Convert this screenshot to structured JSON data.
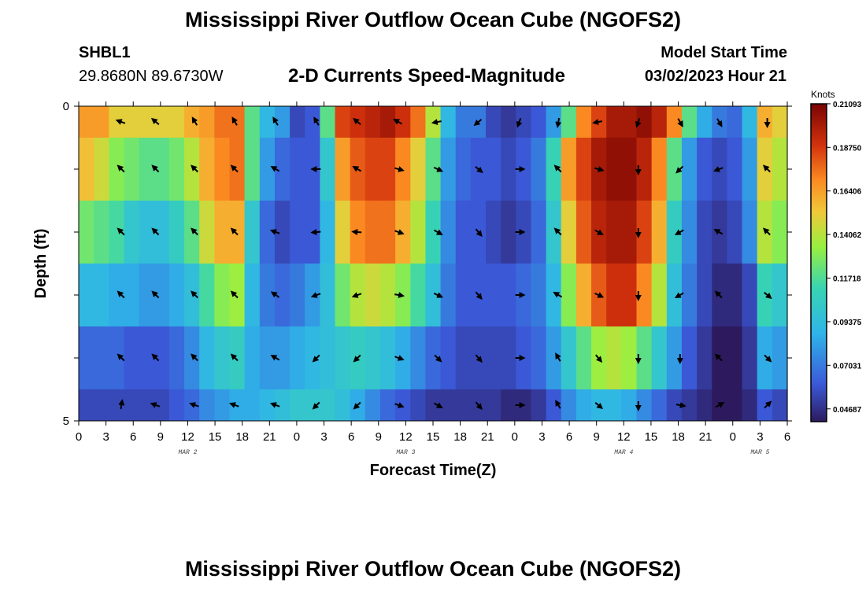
{
  "header": {
    "title": "Mississippi River Outflow Ocean Cube (NGOFS2)",
    "station": "SHBL1",
    "coords": "29.8680N  89.6730W",
    "subtitle": "2-D Currents Speed-Magnitude",
    "model_start_label": "Model Start Time",
    "model_start_value": "03/02/2023 Hour 21"
  },
  "footer": {
    "title": "Mississippi River Outflow Ocean Cube (NGOFS2)"
  },
  "chart_data": {
    "type": "heatmap",
    "xlabel": "Forecast Time(Z)",
    "ylabel": "Depth (ft)",
    "x_tick_labels": [
      "0",
      "3",
      "6",
      "9",
      "12",
      "15",
      "18",
      "21",
      "0",
      "3",
      "6",
      "9",
      "12",
      "15",
      "18",
      "21",
      "0",
      "3",
      "6",
      "9",
      "12",
      "15",
      "18",
      "21",
      "0",
      "3",
      "6"
    ],
    "day_labels": [
      {
        "label": "MAR 2",
        "tick_index": 4
      },
      {
        "label": "MAR 3",
        "tick_index": 12
      },
      {
        "label": "MAR 4",
        "tick_index": 20
      },
      {
        "label": "MAR 5",
        "tick_index": 25
      }
    ],
    "y_tick_labels": [
      "0",
      "5"
    ],
    "xlim_hours": [
      0,
      78
    ],
    "ylim_ft": [
      0,
      5
    ],
    "colorbar": {
      "unit": "Knots",
      "min": 0.04,
      "max": 0.2109,
      "tick_labels": [
        "0.21093",
        "0.18750",
        "0.16406",
        "0.14062",
        "0.11718",
        "0.09375",
        "0.07031",
        "0.04687"
      ],
      "tick_values": [
        0.21093,
        0.1875,
        0.16406,
        0.14062,
        0.11718,
        0.09375,
        0.07031,
        0.04687
      ]
    },
    "layers": [
      {
        "depth_ft": 0.25,
        "speeds": [
          0.165,
          0.165,
          0.15,
          0.15,
          0.15,
          0.15,
          0.15,
          0.16,
          0.165,
          0.175,
          0.175,
          0.12,
          0.09,
          0.08,
          0.055,
          0.06,
          0.12,
          0.185,
          0.19,
          0.195,
          0.2,
          0.19,
          0.175,
          0.14,
          0.09,
          0.07,
          0.07,
          0.055,
          0.05,
          0.055,
          0.06,
          0.08,
          0.12,
          0.17,
          0.185,
          0.2,
          0.2,
          0.205,
          0.195,
          0.17,
          0.12,
          0.085,
          0.07,
          0.065,
          0.09,
          0.16,
          0.15
        ]
      },
      {
        "depth_ft": 1.0,
        "speeds": [
          0.155,
          0.145,
          0.13,
          0.125,
          0.12,
          0.12,
          0.125,
          0.14,
          0.16,
          0.17,
          0.175,
          0.12,
          0.08,
          0.065,
          0.06,
          0.06,
          0.1,
          0.165,
          0.18,
          0.185,
          0.185,
          0.17,
          0.15,
          0.12,
          0.08,
          0.065,
          0.06,
          0.06,
          0.055,
          0.06,
          0.07,
          0.11,
          0.165,
          0.185,
          0.2,
          0.205,
          0.205,
          0.195,
          0.17,
          0.12,
          0.08,
          0.06,
          0.055,
          0.06,
          0.08,
          0.15,
          0.14
        ]
      },
      {
        "depth_ft": 2.0,
        "speeds": [
          0.125,
          0.12,
          0.115,
          0.1,
          0.095,
          0.095,
          0.105,
          0.12,
          0.145,
          0.16,
          0.16,
          0.1,
          0.065,
          0.055,
          0.06,
          0.06,
          0.09,
          0.15,
          0.17,
          0.175,
          0.175,
          0.16,
          0.14,
          0.11,
          0.075,
          0.06,
          0.06,
          0.055,
          0.05,
          0.055,
          0.065,
          0.1,
          0.15,
          0.18,
          0.195,
          0.2,
          0.2,
          0.185,
          0.16,
          0.105,
          0.075,
          0.055,
          0.05,
          0.055,
          0.075,
          0.14,
          0.13
        ]
      },
      {
        "depth_ft": 3.0,
        "speeds": [
          0.09,
          0.09,
          0.085,
          0.085,
          0.08,
          0.08,
          0.085,
          0.095,
          0.115,
          0.13,
          0.135,
          0.09,
          0.07,
          0.065,
          0.07,
          0.08,
          0.095,
          0.125,
          0.14,
          0.145,
          0.14,
          0.13,
          0.115,
          0.095,
          0.07,
          0.06,
          0.06,
          0.06,
          0.06,
          0.065,
          0.07,
          0.09,
          0.13,
          0.16,
          0.18,
          0.19,
          0.19,
          0.17,
          0.14,
          0.095,
          0.07,
          0.055,
          0.045,
          0.045,
          0.055,
          0.11,
          0.1
        ]
      },
      {
        "depth_ft": 4.0,
        "speeds": [
          0.065,
          0.065,
          0.065,
          0.06,
          0.06,
          0.06,
          0.065,
          0.075,
          0.09,
          0.1,
          0.105,
          0.085,
          0.08,
          0.08,
          0.085,
          0.09,
          0.095,
          0.1,
          0.105,
          0.1,
          0.095,
          0.085,
          0.075,
          0.065,
          0.06,
          0.055,
          0.055,
          0.055,
          0.055,
          0.06,
          0.065,
          0.08,
          0.1,
          0.12,
          0.135,
          0.14,
          0.135,
          0.12,
          0.1,
          0.08,
          0.06,
          0.05,
          0.04,
          0.04,
          0.05,
          0.085,
          0.08
        ]
      },
      {
        "depth_ft": 4.75,
        "speeds": [
          0.055,
          0.055,
          0.055,
          0.055,
          0.055,
          0.055,
          0.06,
          0.065,
          0.075,
          0.08,
          0.085,
          0.085,
          0.09,
          0.095,
          0.1,
          0.1,
          0.1,
          0.095,
          0.085,
          0.075,
          0.065,
          0.06,
          0.055,
          0.05,
          0.05,
          0.05,
          0.05,
          0.05,
          0.045,
          0.045,
          0.05,
          0.06,
          0.075,
          0.085,
          0.09,
          0.09,
          0.085,
          0.075,
          0.065,
          0.055,
          0.05,
          0.045,
          0.04,
          0.04,
          0.045,
          0.06,
          0.055
        ]
      }
    ],
    "arrow_times_hours": [
      4.7,
      8.5,
      12.8,
      17.2,
      21.7,
      26.2,
      30.7,
      35.2,
      39.5,
      44,
      48.5,
      52.8,
      57.2,
      61.6,
      66.2,
      70.5,
      75.8
    ],
    "arrow_directions_deg": [
      [
        290,
        310,
        330,
        330,
        330,
        330,
        310,
        300,
        260,
        230,
        200,
        190,
        260,
        200,
        150,
        150,
        180
      ],
      [
        315,
        315,
        315,
        315,
        300,
        270,
        300,
        105,
        115,
        130,
        90,
        315,
        105,
        180,
        225,
        250,
        315
      ],
      [
        315,
        315,
        315,
        315,
        290,
        265,
        275,
        110,
        120,
        140,
        90,
        315,
        120,
        180,
        240,
        300,
        315
      ],
      [
        315,
        315,
        315,
        315,
        305,
        250,
        250,
        100,
        115,
        140,
        90,
        300,
        115,
        180,
        240,
        315,
        130
      ],
      [
        315,
        315,
        315,
        315,
        300,
        225,
        225,
        110,
        135,
        140,
        90,
        330,
        140,
        180,
        180,
        315,
        135
      ],
      [
        10,
        290,
        290,
        290,
        290,
        225,
        225,
        110,
        120,
        140,
        90,
        330,
        130,
        180,
        100,
        60,
        45
      ]
    ]
  }
}
